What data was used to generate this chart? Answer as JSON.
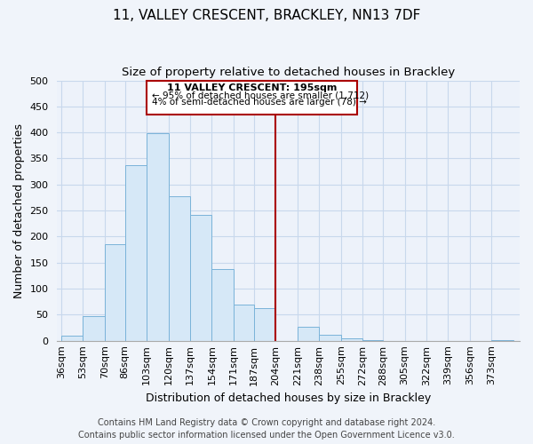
{
  "title": "11, VALLEY CRESCENT, BRACKLEY, NN13 7DF",
  "subtitle": "Size of property relative to detached houses in Brackley",
  "xlabel": "Distribution of detached houses by size in Brackley",
  "ylabel": "Number of detached properties",
  "bar_color": "#d6e8f7",
  "bar_edge_color": "#7ab3d9",
  "categories": [
    "36sqm",
    "53sqm",
    "70sqm",
    "86sqm",
    "103sqm",
    "120sqm",
    "137sqm",
    "154sqm",
    "171sqm",
    "187sqm",
    "204sqm",
    "221sqm",
    "238sqm",
    "255sqm",
    "272sqm",
    "288sqm",
    "305sqm",
    "322sqm",
    "339sqm",
    "356sqm",
    "373sqm"
  ],
  "values": [
    10,
    47,
    185,
    338,
    399,
    278,
    242,
    137,
    70,
    62,
    0,
    26,
    11,
    4,
    2,
    0,
    0,
    0,
    0,
    0,
    2
  ],
  "bin_edges": [
    36,
    53,
    70,
    86,
    103,
    120,
    137,
    154,
    171,
    187,
    204,
    221,
    238,
    255,
    272,
    288,
    305,
    322,
    339,
    356,
    373,
    390
  ],
  "vline_x": 204,
  "vline_color": "#aa0000",
  "ylim": [
    0,
    500
  ],
  "yticks": [
    0,
    50,
    100,
    150,
    200,
    250,
    300,
    350,
    400,
    450,
    500
  ],
  "annotation_title": "11 VALLEY CRESCENT: 195sqm",
  "annotation_line1": "← 95% of detached houses are smaller (1,712)",
  "annotation_line2": "4% of semi-detached houses are larger (78) →",
  "annotation_box_color": "#ffffff",
  "annotation_box_edge": "#aa0000",
  "footer_line1": "Contains HM Land Registry data © Crown copyright and database right 2024.",
  "footer_line2": "Contains public sector information licensed under the Open Government Licence v3.0.",
  "background_color": "#f0f4fa",
  "plot_bg_color": "#edf2fa",
  "grid_color": "#c8d8ec",
  "title_fontsize": 11,
  "subtitle_fontsize": 9.5,
  "axis_label_fontsize": 9,
  "tick_fontsize": 8,
  "footer_fontsize": 7
}
